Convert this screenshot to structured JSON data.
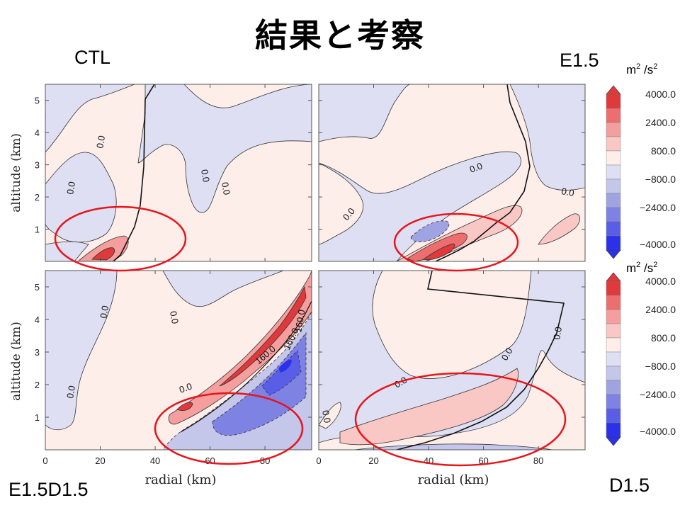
{
  "slide": {
    "title": "結果と考察",
    "labels": {
      "ctl": "CTL",
      "e15": "E1.5",
      "e15d15": "E1.5D1.5",
      "d15": "D1.5"
    }
  },
  "axes": {
    "xlabel": "radial (km)",
    "ylabel": "altitude (km)",
    "xticks": [
      "0",
      "20",
      "40",
      "60",
      "80"
    ],
    "yticks": [
      "1",
      "2",
      "3",
      "4",
      "5"
    ]
  },
  "colorbar": {
    "unit_base": "m",
    "unit_sup1": "2",
    "unit_sep": " /s",
    "unit_sup2": "2",
    "ticks": [
      "4000.0",
      "2400.0",
      "800.0",
      "−800.0",
      "−2400.0",
      "−4000.0"
    ],
    "colors": [
      "#e0393b",
      "#ec6e6e",
      "#f49e9e",
      "#f9c8c4",
      "#fdeeea",
      "#dedff2",
      "#c4c6ea",
      "#a0a3e2",
      "#7e82e2",
      "#5a5ee6",
      "#2b31ea"
    ]
  },
  "contour_labels": {
    "ctl": [
      "0.0",
      "0.0",
      "0.0",
      "0.0",
      "0.0"
    ],
    "e15": [
      "0.0",
      "0.0",
      "0.0"
    ],
    "e15d15": [
      "0.0",
      "0.0",
      "0.0",
      "0.0",
      "160.0",
      "160.0",
      "160.0"
    ],
    "d15": [
      "0.0",
      "0.0",
      "0.0",
      "0.0"
    ]
  },
  "chart_data": [
    {
      "type": "heatmap",
      "panel": "CTL",
      "xlabel": "radial (km)",
      "ylabel": "altitude (km)",
      "xlim": [
        0,
        97
      ],
      "ylim": [
        0,
        5.5
      ],
      "features": [
        {
          "sign": "positive",
          "center": [
            20,
            0.2
          ],
          "peak_approx": 2400
        },
        {
          "sign": "negative",
          "region": "upper left and mid column",
          "peak_approx": -800
        }
      ]
    },
    {
      "type": "heatmap",
      "panel": "E1.5",
      "xlabel": "radial (km)",
      "ylabel": "altitude (km)",
      "xlim": [
        0,
        97
      ],
      "ylim": [
        0,
        5.5
      ],
      "features": [
        {
          "sign": "positive",
          "center": [
            42,
            0.3
          ],
          "peak_approx": 4000
        },
        {
          "sign": "negative",
          "center": [
            38,
            0.9
          ],
          "peak_approx": -2400
        }
      ]
    },
    {
      "type": "heatmap",
      "panel": "E1.5D1.5",
      "xlabel": "radial (km)",
      "ylabel": "altitude (km)",
      "xlim": [
        0,
        97
      ],
      "ylim": [
        0,
        5.5
      ],
      "features": [
        {
          "sign": "positive",
          "region": "diagonal band 40-95 km",
          "peak_approx": 4000
        },
        {
          "sign": "negative",
          "region": "below band",
          "peak_approx": -4000
        }
      ]
    },
    {
      "type": "heatmap",
      "panel": "D1.5",
      "xlabel": "radial (km)",
      "ylabel": "altitude (km)",
      "xlim": [
        0,
        97
      ],
      "ylim": [
        0,
        5.5
      ],
      "features": [
        {
          "sign": "positive",
          "region": "lower band 20-70 km",
          "peak_approx": 2400
        },
        {
          "sign": "negative",
          "region": "diagonal band",
          "peak_approx": -800
        }
      ]
    }
  ]
}
